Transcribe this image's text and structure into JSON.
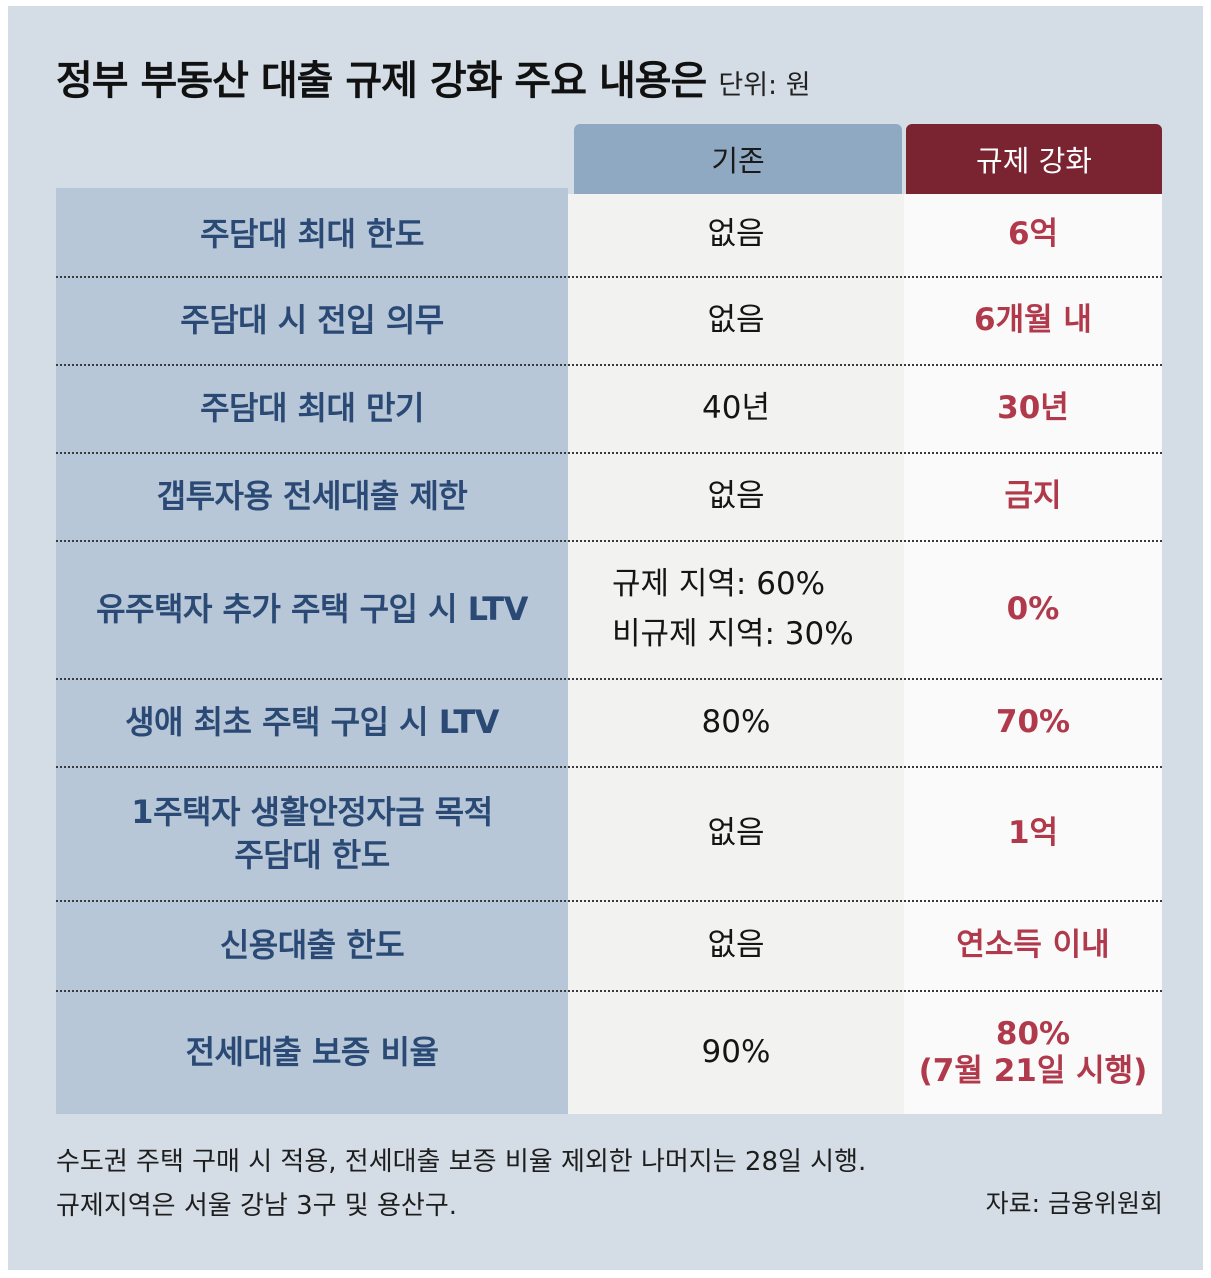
{
  "title": "정부 부동산 대출 규제 강화 주요 내용은",
  "unit": "단위: 원",
  "headers": {
    "current": "기존",
    "new": "규제 강화"
  },
  "rows": [
    {
      "label": "주담대 최대 한도",
      "current": "없음",
      "new": "6억"
    },
    {
      "label": "주담대 시 전입 의무",
      "current": "없음",
      "new": "6개월 내"
    },
    {
      "label": "주담대 최대 만기",
      "current": "40년",
      "new": "30년"
    },
    {
      "label": "갭투자용 전세대출 제한",
      "current": "없음",
      "new": "금지"
    },
    {
      "label": "유주택자 추가 주택 구입 시 LTV",
      "current_line1": "규제 지역: 60%",
      "current_line2": "비규제 지역: 30%",
      "new": "0%"
    },
    {
      "label": "생애 최초 주택 구입 시 LTV",
      "current": "80%",
      "new": "70%"
    },
    {
      "label_line1": "1주택자 생활안정자금 목적",
      "label_line2": "주담대 한도",
      "current": "없음",
      "new": "1억"
    },
    {
      "label": "신용대출 한도",
      "current": "없음",
      "new": "연소득 이내"
    },
    {
      "label": "전세대출 보증 비율",
      "current": "90%",
      "new_line1": "80%",
      "new_line2": "(7월 21일 시행)"
    }
  ],
  "notes": {
    "line1": "수도권 주택 구매 시 적용, 전세대출 보증 비율 제외한 나머지는 28일 시행.",
    "line2": "규제지역은 서울 강남 3구 및 용산구."
  },
  "source": "자료: 금융위원회"
}
